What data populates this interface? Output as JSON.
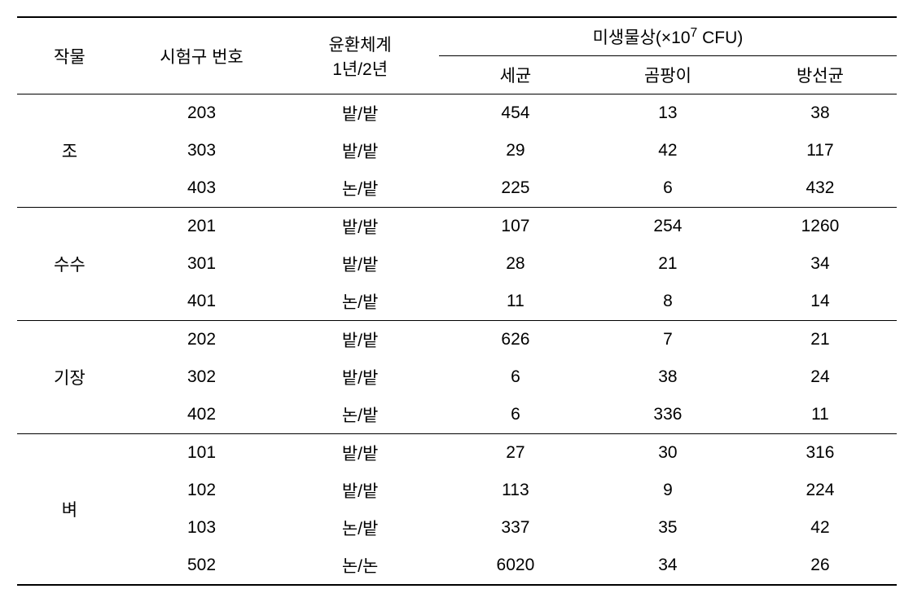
{
  "headers": {
    "crop": "작물",
    "plot": "시험구 번호",
    "system_line1": "윤환체계",
    "system_line2": "1년/2년",
    "microbe_group_prefix": "미생물상(×10",
    "microbe_group_exp": "7",
    "microbe_group_suffix": " CFU)",
    "bacteria": "세균",
    "fungi": "곰팡이",
    "actino": "방선균"
  },
  "groups": [
    {
      "crop": "조",
      "rows": [
        {
          "plot": "203",
          "system": "밭/밭",
          "bacteria": "454",
          "fungi": "13",
          "actino": "38"
        },
        {
          "plot": "303",
          "system": "밭/밭",
          "bacteria": "29",
          "fungi": "42",
          "actino": "117"
        },
        {
          "plot": "403",
          "system": "논/밭",
          "bacteria": "225",
          "fungi": "6",
          "actino": "432"
        }
      ]
    },
    {
      "crop": "수수",
      "rows": [
        {
          "plot": "201",
          "system": "밭/밭",
          "bacteria": "107",
          "fungi": "254",
          "actino": "1260"
        },
        {
          "plot": "301",
          "system": "밭/밭",
          "bacteria": "28",
          "fungi": "21",
          "actino": "34"
        },
        {
          "plot": "401",
          "system": "논/밭",
          "bacteria": "11",
          "fungi": "8",
          "actino": "14"
        }
      ]
    },
    {
      "crop": "기장",
      "rows": [
        {
          "plot": "202",
          "system": "밭/밭",
          "bacteria": "626",
          "fungi": "7",
          "actino": "21"
        },
        {
          "plot": "302",
          "system": "밭/밭",
          "bacteria": "6",
          "fungi": "38",
          "actino": "24"
        },
        {
          "plot": "402",
          "system": "논/밭",
          "bacteria": "6",
          "fungi": "336",
          "actino": "11"
        }
      ]
    },
    {
      "crop": "벼",
      "rows": [
        {
          "plot": "101",
          "system": "밭/밭",
          "bacteria": "27",
          "fungi": "30",
          "actino": "316"
        },
        {
          "plot": "102",
          "system": "밭/밭",
          "bacteria": "113",
          "fungi": "9",
          "actino": "224"
        },
        {
          "plot": "103",
          "system": "논/밭",
          "bacteria": "337",
          "fungi": "35",
          "actino": "42"
        },
        {
          "plot": "502",
          "system": "논/논",
          "bacteria": "6020",
          "fungi": "34",
          "actino": "26"
        }
      ]
    }
  ],
  "style": {
    "font_size_header": 21,
    "font_size_data": 21,
    "text_color": "#000000",
    "background": "#ffffff",
    "rule_thick": "2px",
    "rule_thin": "1px"
  }
}
